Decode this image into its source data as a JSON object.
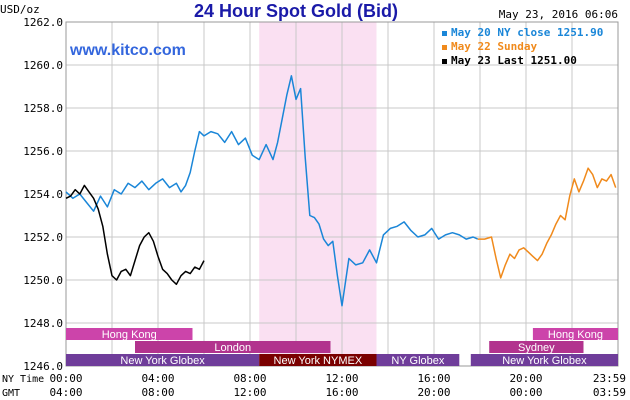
{
  "header": {
    "title": "24 Hour Spot Gold (Bid)",
    "unit": "USD/oz",
    "date": "May 23, 2016 06:06",
    "watermark": "www.kitco.com"
  },
  "chart_data": {
    "type": "line",
    "title": "24 Hour Spot Gold (Bid)",
    "ylabel": "USD/oz",
    "ylim": [
      1246,
      1262
    ],
    "y_ticks": [
      "1262.0",
      "1260.0",
      "1258.0",
      "1256.0",
      "1254.0",
      "1252.0",
      "1250.0",
      "1248.0",
      "1246.0"
    ],
    "x_axis_rows": [
      {
        "label": "NY Time",
        "ticks": [
          "00:00",
          "04:00",
          "08:00",
          "12:00",
          "16:00",
          "20:00",
          "23:59"
        ]
      },
      {
        "label": "GMT",
        "ticks": [
          "04:00",
          "08:00",
          "12:00",
          "16:00",
          "20:00",
          "00:00",
          "03:59"
        ]
      }
    ],
    "highlight_hours": [
      8.4,
      13.5
    ],
    "grid": true,
    "legend_position": "top-right",
    "legend": [
      {
        "text": "May 20 NY close 1251.90",
        "color": "#1a86d8"
      },
      {
        "text": "May 22 Sunday",
        "color": "#f08a1c"
      },
      {
        "text": "May 23 Last 1251.00",
        "color": "#000000"
      }
    ],
    "series": [
      {
        "name": "May 20 NY close 1251.90",
        "color": "#1a86d8",
        "x": [
          0,
          0.3,
          0.6,
          0.9,
          1.2,
          1.5,
          1.8,
          2.1,
          2.4,
          2.7,
          3.0,
          3.3,
          3.6,
          3.9,
          4.2,
          4.5,
          4.8,
          5.0,
          5.2,
          5.4,
          5.6,
          5.8,
          6.0,
          6.3,
          6.6,
          6.9,
          7.2,
          7.5,
          7.8,
          8.1,
          8.4,
          8.7,
          9.0,
          9.2,
          9.4,
          9.6,
          9.8,
          10.0,
          10.2,
          10.4,
          10.6,
          10.8,
          11.0,
          11.2,
          11.4,
          11.6,
          11.8,
          12.0,
          12.3,
          12.6,
          12.9,
          13.2,
          13.5,
          13.8,
          14.1,
          14.4,
          14.7,
          15.0,
          15.3,
          15.6,
          15.9,
          16.2,
          16.5,
          16.8,
          17.1,
          17.4,
          17.7,
          17.9
        ],
        "values": [
          1254.1,
          1253.8,
          1254.0,
          1253.6,
          1253.2,
          1253.9,
          1253.4,
          1254.2,
          1254.0,
          1254.5,
          1254.3,
          1254.6,
          1254.2,
          1254.5,
          1254.7,
          1254.3,
          1254.5,
          1254.1,
          1254.4,
          1255.0,
          1256.0,
          1256.9,
          1256.7,
          1256.9,
          1256.8,
          1256.4,
          1256.9,
          1256.3,
          1256.6,
          1255.8,
          1255.6,
          1256.3,
          1255.6,
          1256.4,
          1257.5,
          1258.6,
          1259.5,
          1258.4,
          1258.9,
          1255.7,
          1253.0,
          1252.9,
          1252.6,
          1251.9,
          1251.6,
          1251.8,
          1250.2,
          1248.8,
          1251.0,
          1250.7,
          1250.8,
          1251.4,
          1250.8,
          1252.1,
          1252.4,
          1252.5,
          1252.7,
          1252.3,
          1252.0,
          1252.1,
          1252.4,
          1251.9,
          1252.1,
          1252.2,
          1252.1,
          1251.9,
          1252.0,
          1251.9
        ]
      },
      {
        "name": "May 22 Sunday",
        "color": "#f08a1c",
        "x": [
          17.9,
          18.2,
          18.5,
          18.7,
          18.9,
          19.1,
          19.3,
          19.5,
          19.7,
          19.9,
          20.1,
          20.3,
          20.5,
          20.7,
          20.9,
          21.1,
          21.3,
          21.5,
          21.7,
          21.9,
          22.1,
          22.3,
          22.5,
          22.7,
          22.9,
          23.1,
          23.3,
          23.5,
          23.7,
          23.9
        ],
        "values": [
          1251.9,
          1251.9,
          1252.0,
          1251.0,
          1250.1,
          1250.7,
          1251.2,
          1251.0,
          1251.4,
          1251.5,
          1251.3,
          1251.1,
          1250.9,
          1251.2,
          1251.7,
          1252.1,
          1252.6,
          1253.0,
          1252.8,
          1253.9,
          1254.7,
          1254.1,
          1254.6,
          1255.2,
          1254.9,
          1254.3,
          1254.7,
          1254.6,
          1254.9,
          1254.3
        ]
      },
      {
        "name": "May 23 Last 1251.00",
        "color": "#000000",
        "x": [
          0,
          0.2,
          0.4,
          0.6,
          0.8,
          1.0,
          1.2,
          1.4,
          1.6,
          1.8,
          2.0,
          2.2,
          2.4,
          2.6,
          2.8,
          3.0,
          3.2,
          3.4,
          3.6,
          3.8,
          4.0,
          4.2,
          4.4,
          4.6,
          4.8,
          5.0,
          5.2,
          5.4,
          5.6,
          5.8,
          6.0
        ],
        "values": [
          1253.8,
          1253.9,
          1254.2,
          1254.0,
          1254.4,
          1254.1,
          1253.8,
          1253.3,
          1252.5,
          1251.2,
          1250.2,
          1250.0,
          1250.4,
          1250.5,
          1250.2,
          1250.9,
          1251.6,
          1252.0,
          1252.2,
          1251.8,
          1251.1,
          1250.5,
          1250.3,
          1250.0,
          1249.8,
          1250.2,
          1250.4,
          1250.3,
          1250.6,
          1250.5,
          1250.9
        ]
      }
    ]
  },
  "sessions": [
    {
      "label": "Hong Kong",
      "row": 0,
      "start": 0,
      "end": 5.5,
      "color": "#cc44aa"
    },
    {
      "label": "Hong Kong",
      "row": 0,
      "start": 20.3,
      "end": 24,
      "color": "#cc44aa"
    },
    {
      "label": "London",
      "row": 1,
      "start": 3,
      "end": 11.5,
      "color": "#b2338e"
    },
    {
      "label": "Sydney",
      "row": 1,
      "start": 18.4,
      "end": 22.5,
      "color": "#b2338e"
    },
    {
      "label": "New York Globex",
      "row": 2,
      "start": 0,
      "end": 8.4,
      "color": "#6f3d9a"
    },
    {
      "label": "New York NYMEX",
      "row": 2,
      "start": 8.4,
      "end": 13.5,
      "color": "#7a0000"
    },
    {
      "label": "NY Globex",
      "row": 2,
      "start": 13.5,
      "end": 17.1,
      "color": "#6f3d9a"
    },
    {
      "label": "New York Globex",
      "row": 2,
      "start": 17.6,
      "end": 24,
      "color": "#6f3d9a"
    }
  ],
  "colors": {
    "grid": "#c8c8c8",
    "plot_bg": "#ffffff",
    "highlight": "#fae0f2",
    "title": "#1a1aa8",
    "watermark": "#3366dd",
    "session_text": "#ffffff"
  }
}
